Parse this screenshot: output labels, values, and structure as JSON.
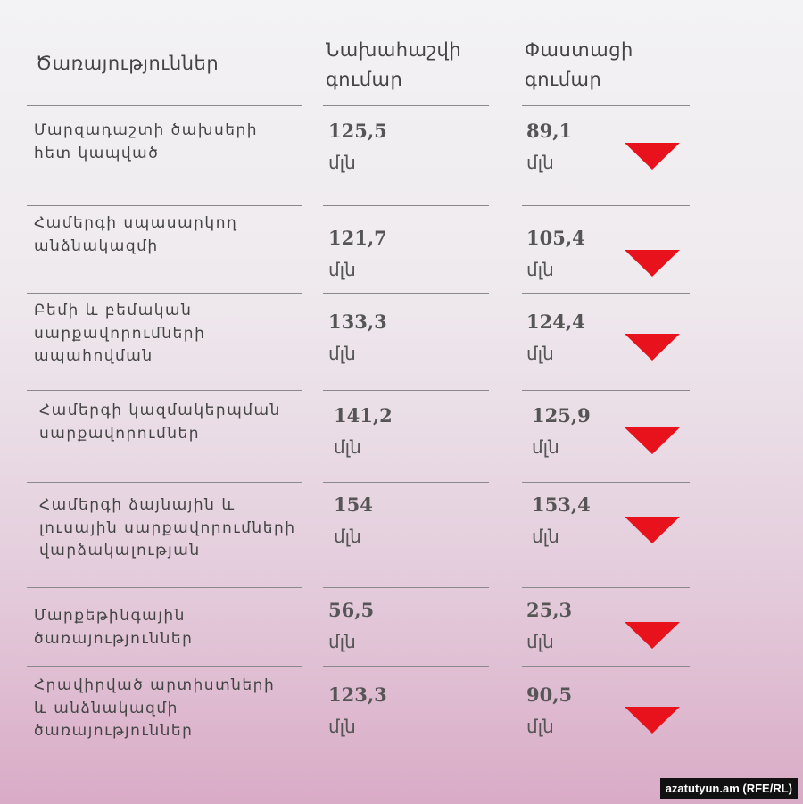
{
  "header": {
    "service": "Ծառայություններ",
    "budget": "Նախահաշվի գումար",
    "actual": "Փաստացի գումար"
  },
  "table": {
    "rows": [
      {
        "service": "Մարզադաշտի ծախսերի հետ կապված",
        "budget": "125,5",
        "budget_unit": "մլն",
        "actual": "89,1",
        "actual_unit": "մլն"
      },
      {
        "service": "Համերգի սպասարկող անձնակազմի",
        "budget": "121,7",
        "budget_unit": "մլն",
        "actual": "105,4",
        "actual_unit": "մլն"
      },
      {
        "service": "Բեմի և բեմական սարքավորումների ապահովման",
        "budget": "133,3",
        "budget_unit": "մլն",
        "actual": "124,4",
        "actual_unit": "մլն"
      },
      {
        "service": "Համերգի կազմակերպման սարքավորումներ",
        "budget": "141,2",
        "budget_unit": "մլն",
        "actual": "125,9",
        "actual_unit": "մլն"
      },
      {
        "service": "Համերգի ձայնային և լուսային սարքավորումների վարձակալության",
        "budget": "154",
        "budget_unit": "մլն",
        "actual": "153,4",
        "actual_unit": "մլն"
      },
      {
        "service": "Մարքեթինգային ծառայություններ",
        "budget": "56,5",
        "budget_unit": "մլն",
        "actual": "25,3",
        "actual_unit": "մլն"
      },
      {
        "service": "Հրավիրված արտիստների և անձնակազմի ծառայություններ",
        "budget": "123,3",
        "budget_unit": "մլն",
        "actual": "90,5",
        "actual_unit": "մլն"
      }
    ]
  },
  "footer": {
    "credit": "azatutyun.am (RFE/RL)"
  }
}
